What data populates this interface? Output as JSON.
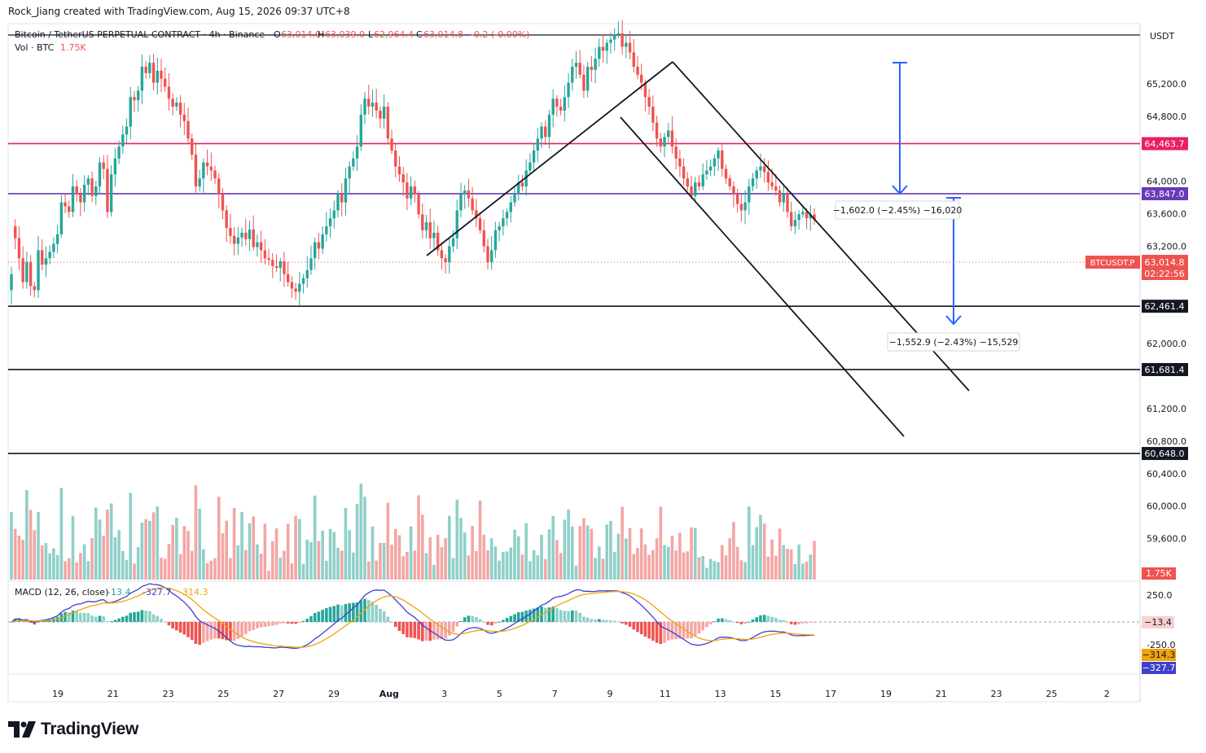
{
  "credit": "Rock_Jiang created with TradingView.com, Aug 15, 2026 09:37 UTC+8",
  "brand": "TradingView",
  "colors": {
    "up": "#26a69a",
    "down": "#ef5350",
    "upVol": "#8fd0c9",
    "downVol": "#f3a6a4",
    "magenta": "#e91e63",
    "purple": "#673ab7",
    "blue": "#2962ff",
    "orange": "#f0a30a",
    "macdLine": "#3f3fcf"
  },
  "chart_data": {
    "type": "candlestick",
    "title": "Bitcoin / TetherUS PERPETUAL CONTRACT · 4h · Binance",
    "symbol": "BTCUSDT.P",
    "ohlc": {
      "O": "63,014.9",
      "H": "63,039.0",
      "L": "62,964.4",
      "C": "63,014.8",
      "change": "-0.2 (-0.00%)"
    },
    "volume": {
      "label": "Vol · BTC",
      "value": "1.75K"
    },
    "currency": "USDT",
    "price_ticks": [
      "65,200.0",
      "64,800.0",
      "64,000.0",
      "63,600.0",
      "63,200.0",
      "62,000.0",
      "61,200.0",
      "60,800.0",
      "60,400.0",
      "60,000.0",
      "59,600.0"
    ],
    "price_range": [
      59700,
      65600
    ],
    "x_ticks": [
      "19",
      "21",
      "23",
      "25",
      "27",
      "29",
      "Aug",
      "3",
      "5",
      "7",
      "9",
      "11",
      "13",
      "15",
      "17",
      "19",
      "21",
      "23",
      "25",
      "2"
    ],
    "levels": [
      {
        "price": 64463.7,
        "label": "64,463.7",
        "color": "magenta"
      },
      {
        "price": 63847.0,
        "label": "63,847.0",
        "color": "purple"
      },
      {
        "price": 62461.4,
        "label": "62,461.4",
        "color": "black"
      },
      {
        "price": 61681.4,
        "label": "61,681.4",
        "color": "black"
      },
      {
        "price": 60648.0,
        "label": "60,648.0",
        "color": "black"
      }
    ],
    "current_price": {
      "label": "BTCUSDT.P",
      "value": "63,014.8",
      "countdown": "02:22:56"
    },
    "measurements": [
      {
        "text": "−1,602.0 (−2.45%) −16,020",
        "from": 65450,
        "to": 63847
      },
      {
        "text": "−1,552.9 (−2.43%) −15,529",
        "from": 63847,
        "to": 62294
      }
    ],
    "volume_last_label": "1.75K",
    "macd": {
      "label": "MACD (12, 26, close)",
      "shown_values": [
        "-13.4",
        "-327.7",
        "-314.3"
      ],
      "ticks": [
        "250.0",
        "-250.0"
      ],
      "axis_labels": {
        "histogram": "−13.4",
        "signal": "−314.3",
        "macd": "−327.7"
      }
    },
    "candles_compact": "20:40,100:85,85:60,60:30,30:55,55:25,25:20,20:70,70:52,52:60,60:68,68:78,78:90,90:130,130:125,125:118,118:150,150:140,140:130,130:152,152:160,160:138,138:150,150:180,180:172,172:118,118:165,165:185,185:200,200:215,215:225,225:262,262:258,258:270,270:300,300:292,292:305,305:280,280:295,295:285,285:275,275:260,260:250,250:255,255:240,240:232,232:210,210:190,190:150,150:160,160:180,180:175,175:170,170:160,160:140,140:120,120:98,98:88,88:78,78:86,86:92,92:84,84:96,96:74,74:80,80:70,70:60,60:58,58:50,50:48,48:56,56:40,40:30,30:22,22:18,18:28,28:35,35:45,45:60,60:80,80:72,72:90,90:100,100:110,110:120,120:140,140:130,130:160,160:175,175:185,185:200,200:240,240:260,260:250,250:255,255:245,245:235,235:250,250:210,210:195,195:175,175:165,165:155,155:135,135:150,150:140,140:115,115:95,95:105,105:85,85:92,92:70,70:60,60:55,55:75,75:85,85:120,120:140,140:145,145:135,135:120,120:110,110:95,95:75,75:55,55:70,70:95,95:100,100:110,110:118,118:130,130:140,140:155,155:150,150:170,170:180,180:195,195:210,210:225,225:212,212:240,240:260,260:250,250:245,245:262,262:280,280:300,300:305,305:290,290:270,270:300,300:296,296:310,310:325,325:320,320:330,330:334,334:340,340:342,342:325,325:330,330:318,318:300,300:290,290:280,280:262,262:250,250:230,230:210,210:200,200:212,212:220,220:200,200:185,185:175,175:160,160:150,150:138,138:155,155:150,150:165,165:170,170:175,175:185,185:195,195:172,172:160,160:150,150:140,140:128,128:120,120:130,130:150,150:160,160:170,170:175,175:168,168:155,155:150,150:145,145:130,130:140,140:118,118:100,100:108,108:115,115:118,118:110,110:115,115:108"
  }
}
